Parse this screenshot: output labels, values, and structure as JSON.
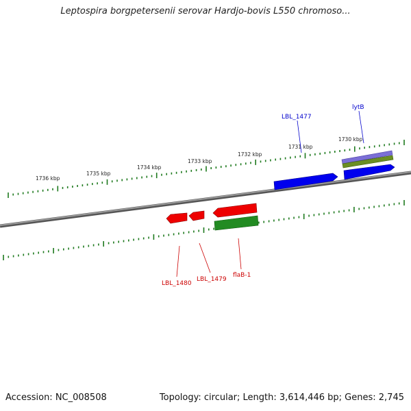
{
  "title": "Leptospira borgpetersenii serovar Hardjo-bovis L550 chromoso...",
  "footer": {
    "accession": "Accession: NC_008508",
    "stats": "Topology: circular; Length: 3,614,446 bp; Genes: 2,745"
  },
  "colors": {
    "backbone": "#808080",
    "tick": "#1e7a1e",
    "forward_gene": "#0000ee",
    "reverse_gene": "#ee0000",
    "forward_cds": "#7b6fd6",
    "forward_cds2": "#6b8e23",
    "reverse_cds": "#228b22",
    "forward_label": "#0000cc",
    "reverse_label": "#cc0000"
  },
  "scale": {
    "labels": [
      "1736 kbp",
      "1735 kbp",
      "1734 kbp",
      "1733 kbp",
      "1732 kbp",
      "1731 kbp",
      "1730 kbp"
    ]
  },
  "genes": {
    "forward": [
      {
        "name": "LBL_1477"
      },
      {
        "name": "lytB"
      }
    ],
    "reverse": [
      {
        "name": "LBL_1480"
      },
      {
        "name": "LBL_1479"
      },
      {
        "name": "flaB-1"
      }
    ]
  }
}
